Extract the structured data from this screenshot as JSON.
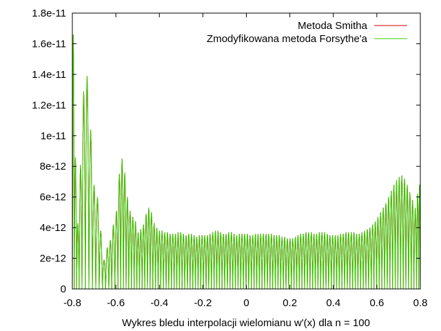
{
  "chart_data": {
    "type": "line",
    "title": "",
    "xlabel": "Wykres bledu interpolacji wielomianu w'(x) dla n = 100",
    "ylabel": "",
    "xlim": [
      -0.8,
      0.8
    ],
    "ylim": [
      0,
      1.8e-11
    ],
    "grid": false,
    "legend_position": "top-right",
    "x_ticks": [
      -0.8,
      -0.6,
      -0.4,
      -0.2,
      0,
      0.2,
      0.4,
      0.6,
      0.8
    ],
    "x_tick_labels": [
      "-0.8",
      "-0.6",
      "-0.4",
      "-0.2",
      "0",
      "0.2",
      "0.4",
      "0.6",
      "0.8"
    ],
    "y_ticks": [
      0,
      2e-12,
      4e-12,
      6e-12,
      8e-12,
      1e-11,
      1.2e-11,
      1.4e-11,
      1.6e-11,
      1.8e-11
    ],
    "y_tick_labels": [
      "0",
      "2e-12",
      "4e-12",
      "6e-12",
      "8e-12",
      "1e-11",
      "1.2e-11",
      "1.4e-11",
      "1.6e-11",
      "1.8e-11"
    ],
    "series": [
      {
        "name": "Metoda Smitha",
        "color": "#cc0000",
        "peaks": [
          [
            -0.7968,
            1.66e-11
          ],
          [
            -0.786,
            8.6e-12
          ],
          [
            -0.775,
            4.3e-12
          ],
          [
            -0.7627,
            8.1e-12
          ],
          [
            -0.7485,
            1.29e-11
          ],
          [
            -0.732,
            1.39e-11
          ],
          [
            -0.7157,
            1.04e-11
          ],
          [
            -0.7,
            6.8e-12
          ],
          [
            -0.6845,
            6e-12
          ],
          [
            -0.669,
            3.8e-12
          ],
          [
            -0.6548,
            1.9e-12
          ],
          [
            -0.639,
            2.7e-12
          ],
          [
            -0.6252,
            3.2e-12
          ],
          [
            -0.6122,
            4.2e-12
          ],
          [
            -0.5965,
            5.1e-12
          ],
          [
            -0.584,
            7.5e-12
          ],
          [
            -0.5715,
            8.5e-12
          ],
          [
            -0.559,
            7.6e-12
          ],
          [
            -0.5468,
            6e-12
          ],
          [
            -0.5345,
            5.1e-12
          ],
          [
            -0.522,
            4.7e-12
          ],
          [
            -0.5098,
            4.4e-12
          ],
          [
            -0.4975,
            3.7e-12
          ],
          [
            -0.4852,
            3.9e-12
          ],
          [
            -0.473,
            4.2e-12
          ],
          [
            -0.4608,
            4.9e-12
          ],
          [
            -0.4485,
            5.3e-12
          ],
          [
            -0.4363,
            5e-12
          ],
          [
            -0.424,
            4.3e-12
          ],
          [
            -0.4118,
            4e-12
          ],
          [
            -0.3995,
            3.8e-12
          ],
          [
            -0.3873,
            3.8e-12
          ],
          [
            -0.375,
            3.7e-12
          ],
          [
            -0.3628,
            3.7e-12
          ],
          [
            -0.3505,
            3.6e-12
          ],
          [
            -0.3383,
            3.6e-12
          ],
          [
            -0.326,
            3.6e-12
          ],
          [
            -0.3138,
            3.7e-12
          ],
          [
            -0.3015,
            3.7e-12
          ],
          [
            -0.2893,
            3.6e-12
          ],
          [
            -0.277,
            3.5e-12
          ],
          [
            -0.2648,
            3.6e-12
          ],
          [
            -0.2525,
            3.6e-12
          ],
          [
            -0.2403,
            3.5e-12
          ],
          [
            -0.228,
            3.4e-12
          ],
          [
            -0.2158,
            3.5e-12
          ],
          [
            -0.2035,
            3.5e-12
          ],
          [
            -0.1913,
            3.5e-12
          ],
          [
            -0.179,
            3.5e-12
          ],
          [
            -0.1668,
            3.6e-12
          ],
          [
            -0.1545,
            3.7e-12
          ],
          [
            -0.1423,
            3.8e-12
          ],
          [
            -0.13,
            3.8e-12
          ],
          [
            -0.1178,
            3.7e-12
          ],
          [
            -0.1055,
            3.6e-12
          ],
          [
            -0.0933,
            3.6e-12
          ],
          [
            -0.081,
            3.7e-12
          ],
          [
            -0.0688,
            3.7e-12
          ],
          [
            -0.0565,
            3.6e-12
          ],
          [
            -0.0443,
            3.5e-12
          ],
          [
            -0.032,
            3.6e-12
          ],
          [
            -0.0198,
            3.6e-12
          ],
          [
            -0.0075,
            3.6e-12
          ],
          [
            0.0047,
            3.6e-12
          ],
          [
            0.017,
            3.5e-12
          ],
          [
            0.0292,
            3.5e-12
          ],
          [
            0.0415,
            3.6e-12
          ],
          [
            0.0537,
            3.6e-12
          ],
          [
            0.066,
            3.6e-12
          ],
          [
            0.0782,
            3.6e-12
          ],
          [
            0.0905,
            3.6e-12
          ],
          [
            0.1027,
            3.6e-12
          ],
          [
            0.115,
            3.6e-12
          ],
          [
            0.1272,
            3.5e-12
          ],
          [
            0.1395,
            3.5e-12
          ],
          [
            0.1517,
            3.5e-12
          ],
          [
            0.164,
            3.4e-12
          ],
          [
            0.1762,
            3.4e-12
          ],
          [
            0.1885,
            3.3e-12
          ],
          [
            0.2007,
            3.3e-12
          ],
          [
            0.213,
            3.3e-12
          ],
          [
            0.2252,
            3.4e-12
          ],
          [
            0.2375,
            3.5e-12
          ],
          [
            0.2497,
            3.6e-12
          ],
          [
            0.262,
            3.6e-12
          ],
          [
            0.2742,
            3.7e-12
          ],
          [
            0.2865,
            3.7e-12
          ],
          [
            0.2987,
            3.7e-12
          ],
          [
            0.311,
            3.6e-12
          ],
          [
            0.3232,
            3.6e-12
          ],
          [
            0.3355,
            3.7e-12
          ],
          [
            0.3477,
            3.7e-12
          ],
          [
            0.36,
            3.7e-12
          ],
          [
            0.3722,
            3.6e-12
          ],
          [
            0.3845,
            3.5e-12
          ],
          [
            0.3967,
            3.5e-12
          ],
          [
            0.409,
            3.5e-12
          ],
          [
            0.4212,
            3.5e-12
          ],
          [
            0.4335,
            3.6e-12
          ],
          [
            0.4457,
            3.6e-12
          ],
          [
            0.458,
            3.7e-12
          ],
          [
            0.4702,
            3.7e-12
          ],
          [
            0.4825,
            3.7e-12
          ],
          [
            0.4947,
            3.7e-12
          ],
          [
            0.507,
            3.6e-12
          ],
          [
            0.5192,
            3.6e-12
          ],
          [
            0.5315,
            3.7e-12
          ],
          [
            0.5437,
            3.8e-12
          ],
          [
            0.556,
            3.9e-12
          ],
          [
            0.5682,
            4e-12
          ],
          [
            0.5805,
            4.2e-12
          ],
          [
            0.5927,
            4.4e-12
          ],
          [
            0.605,
            4.7e-12
          ],
          [
            0.6172,
            5e-12
          ],
          [
            0.6295,
            5.3e-12
          ],
          [
            0.6417,
            5.6e-12
          ],
          [
            0.654,
            6e-12
          ],
          [
            0.6662,
            6.4e-12
          ],
          [
            0.6785,
            6.8e-12
          ],
          [
            0.6907,
            7.1e-12
          ],
          [
            0.703,
            7.3e-12
          ],
          [
            0.7152,
            7.4e-12
          ],
          [
            0.7275,
            7.2e-12
          ],
          [
            0.7397,
            6.8e-12
          ],
          [
            0.752,
            6.3e-12
          ],
          [
            0.7642,
            5.8e-12
          ],
          [
            0.7765,
            5.3e-12
          ],
          [
            0.7887,
            6.2e-12
          ],
          [
            0.7968,
            6.8e-12
          ]
        ]
      },
      {
        "name": "Zmodyfikowana metoda Forsythe'a",
        "color": "#33cc00",
        "peaks": [
          [
            -0.7968,
            1.66e-11
          ],
          [
            -0.786,
            8.6e-12
          ],
          [
            -0.775,
            4.3e-12
          ],
          [
            -0.7627,
            8.1e-12
          ],
          [
            -0.7485,
            1.29e-11
          ],
          [
            -0.732,
            1.39e-11
          ],
          [
            -0.7157,
            1.04e-11
          ],
          [
            -0.7,
            6.8e-12
          ],
          [
            -0.6845,
            6e-12
          ],
          [
            -0.669,
            3.8e-12
          ],
          [
            -0.6548,
            1.9e-12
          ],
          [
            -0.639,
            2.7e-12
          ],
          [
            -0.6252,
            3.2e-12
          ],
          [
            -0.6122,
            4.2e-12
          ],
          [
            -0.5965,
            5.1e-12
          ],
          [
            -0.584,
            7.5e-12
          ],
          [
            -0.5715,
            8.5e-12
          ],
          [
            -0.559,
            7.6e-12
          ],
          [
            -0.5468,
            6e-12
          ],
          [
            -0.5345,
            5.1e-12
          ],
          [
            -0.522,
            4.7e-12
          ],
          [
            -0.5098,
            4.4e-12
          ],
          [
            -0.4975,
            3.7e-12
          ],
          [
            -0.4852,
            3.9e-12
          ],
          [
            -0.473,
            4.2e-12
          ],
          [
            -0.4608,
            4.9e-12
          ],
          [
            -0.4485,
            5.3e-12
          ],
          [
            -0.4363,
            5e-12
          ],
          [
            -0.424,
            4.3e-12
          ],
          [
            -0.4118,
            4e-12
          ],
          [
            -0.3995,
            3.8e-12
          ],
          [
            -0.3873,
            3.8e-12
          ],
          [
            -0.375,
            3.7e-12
          ],
          [
            -0.3628,
            3.7e-12
          ],
          [
            -0.3505,
            3.6e-12
          ],
          [
            -0.3383,
            3.6e-12
          ],
          [
            -0.326,
            3.6e-12
          ],
          [
            -0.3138,
            3.7e-12
          ],
          [
            -0.3015,
            3.7e-12
          ],
          [
            -0.2893,
            3.6e-12
          ],
          [
            -0.277,
            3.5e-12
          ],
          [
            -0.2648,
            3.6e-12
          ],
          [
            -0.2525,
            3.6e-12
          ],
          [
            -0.2403,
            3.5e-12
          ],
          [
            -0.228,
            3.4e-12
          ],
          [
            -0.2158,
            3.5e-12
          ],
          [
            -0.2035,
            3.5e-12
          ],
          [
            -0.1913,
            3.5e-12
          ],
          [
            -0.179,
            3.5e-12
          ],
          [
            -0.1668,
            3.6e-12
          ],
          [
            -0.1545,
            3.7e-12
          ],
          [
            -0.1423,
            3.8e-12
          ],
          [
            -0.13,
            3.8e-12
          ],
          [
            -0.1178,
            3.7e-12
          ],
          [
            -0.1055,
            3.6e-12
          ],
          [
            -0.0933,
            3.6e-12
          ],
          [
            -0.081,
            3.7e-12
          ],
          [
            -0.0688,
            3.7e-12
          ],
          [
            -0.0565,
            3.6e-12
          ],
          [
            -0.0443,
            3.5e-12
          ],
          [
            -0.032,
            3.6e-12
          ],
          [
            -0.0198,
            3.6e-12
          ],
          [
            -0.0075,
            3.6e-12
          ],
          [
            0.0047,
            3.6e-12
          ],
          [
            0.017,
            3.5e-12
          ],
          [
            0.0292,
            3.5e-12
          ],
          [
            0.0415,
            3.6e-12
          ],
          [
            0.0537,
            3.6e-12
          ],
          [
            0.066,
            3.6e-12
          ],
          [
            0.0782,
            3.6e-12
          ],
          [
            0.0905,
            3.6e-12
          ],
          [
            0.1027,
            3.6e-12
          ],
          [
            0.115,
            3.6e-12
          ],
          [
            0.1272,
            3.5e-12
          ],
          [
            0.1395,
            3.5e-12
          ],
          [
            0.1517,
            3.5e-12
          ],
          [
            0.164,
            3.4e-12
          ],
          [
            0.1762,
            3.4e-12
          ],
          [
            0.1885,
            3.3e-12
          ],
          [
            0.2007,
            3.3e-12
          ],
          [
            0.213,
            3.3e-12
          ],
          [
            0.2252,
            3.4e-12
          ],
          [
            0.2375,
            3.5e-12
          ],
          [
            0.2497,
            3.6e-12
          ],
          [
            0.262,
            3.6e-12
          ],
          [
            0.2742,
            3.7e-12
          ],
          [
            0.2865,
            3.7e-12
          ],
          [
            0.2987,
            3.7e-12
          ],
          [
            0.311,
            3.6e-12
          ],
          [
            0.3232,
            3.6e-12
          ],
          [
            0.3355,
            3.7e-12
          ],
          [
            0.3477,
            3.7e-12
          ],
          [
            0.36,
            3.7e-12
          ],
          [
            0.3722,
            3.6e-12
          ],
          [
            0.3845,
            3.5e-12
          ],
          [
            0.3967,
            3.5e-12
          ],
          [
            0.409,
            3.5e-12
          ],
          [
            0.4212,
            3.5e-12
          ],
          [
            0.4335,
            3.6e-12
          ],
          [
            0.4457,
            3.6e-12
          ],
          [
            0.458,
            3.7e-12
          ],
          [
            0.4702,
            3.7e-12
          ],
          [
            0.4825,
            3.7e-12
          ],
          [
            0.4947,
            3.7e-12
          ],
          [
            0.507,
            3.6e-12
          ],
          [
            0.5192,
            3.6e-12
          ],
          [
            0.5315,
            3.7e-12
          ],
          [
            0.5437,
            3.8e-12
          ],
          [
            0.556,
            3.9e-12
          ],
          [
            0.5682,
            4e-12
          ],
          [
            0.5805,
            4.2e-12
          ],
          [
            0.5927,
            4.4e-12
          ],
          [
            0.605,
            4.7e-12
          ],
          [
            0.6172,
            5e-12
          ],
          [
            0.6295,
            5.3e-12
          ],
          [
            0.6417,
            5.6e-12
          ],
          [
            0.654,
            6e-12
          ],
          [
            0.6662,
            6.4e-12
          ],
          [
            0.6785,
            6.8e-12
          ],
          [
            0.6907,
            7.1e-12
          ],
          [
            0.703,
            7.3e-12
          ],
          [
            0.7152,
            7.4e-12
          ],
          [
            0.7275,
            7.2e-12
          ],
          [
            0.7397,
            6.8e-12
          ],
          [
            0.752,
            6.3e-12
          ],
          [
            0.7642,
            5.8e-12
          ],
          [
            0.7765,
            5.3e-12
          ],
          [
            0.7887,
            6.2e-12
          ],
          [
            0.7968,
            6.8e-12
          ]
        ]
      }
    ]
  }
}
